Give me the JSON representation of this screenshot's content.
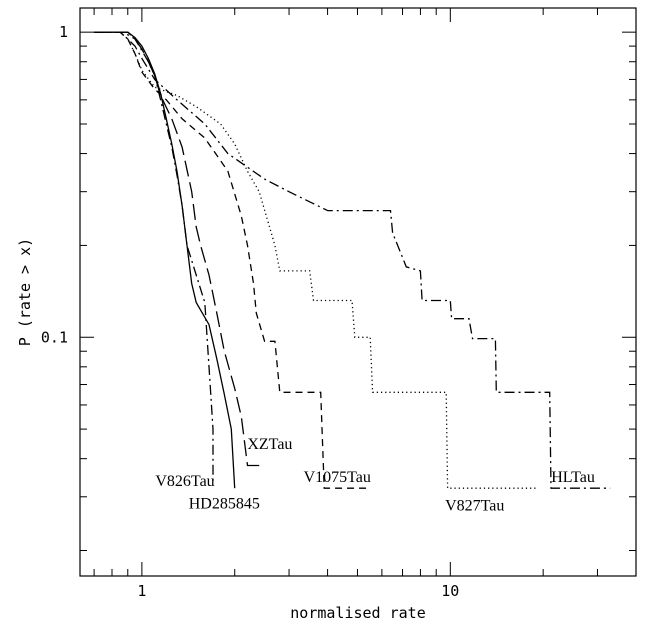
{
  "chart_data": {
    "type": "line",
    "title": "",
    "xlabel": "normalised rate",
    "ylabel": "P (rate > x)",
    "xscale": "log",
    "yscale": "log",
    "xlim": [
      0.63,
      40
    ],
    "ylim": [
      0.0165,
      1.2
    ],
    "xticks_labeled": [
      {
        "value": 1,
        "label": "1"
      },
      {
        "value": 10,
        "label": "10"
      }
    ],
    "yticks_labeled": [
      {
        "value": 1,
        "label": "1"
      },
      {
        "value": 0.1,
        "label": "0.1"
      }
    ],
    "grid": false,
    "legend": "none (series labelled directly on plot)",
    "series": [
      {
        "name": "V826Tau",
        "style": "dash-dot",
        "color": "#000000",
        "points": [
          [
            0.7,
            1.0
          ],
          [
            0.88,
            1.0
          ],
          [
            0.9,
            0.98
          ],
          [
            0.95,
            0.95
          ],
          [
            1.0,
            0.87
          ],
          [
            1.05,
            0.8
          ],
          [
            1.1,
            0.72
          ],
          [
            1.15,
            0.6
          ],
          [
            1.2,
            0.5
          ],
          [
            1.25,
            0.42
          ],
          [
            1.3,
            0.34
          ],
          [
            1.35,
            0.27
          ],
          [
            1.4,
            0.2
          ],
          [
            1.5,
            0.16
          ],
          [
            1.6,
            0.13
          ],
          [
            1.65,
            0.08
          ],
          [
            1.7,
            0.05
          ],
          [
            1.7,
            0.033
          ]
        ],
        "label_anchor": [
          1.38,
          0.0325
        ]
      },
      {
        "name": "HD285845",
        "style": "solid",
        "color": "#000000",
        "points": [
          [
            0.7,
            1.0
          ],
          [
            0.9,
            1.0
          ],
          [
            0.95,
            0.96
          ],
          [
            1.0,
            0.9
          ],
          [
            1.05,
            0.82
          ],
          [
            1.1,
            0.73
          ],
          [
            1.15,
            0.63
          ],
          [
            1.2,
            0.52
          ],
          [
            1.25,
            0.43
          ],
          [
            1.3,
            0.35
          ],
          [
            1.35,
            0.27
          ],
          [
            1.4,
            0.2
          ],
          [
            1.45,
            0.15
          ],
          [
            1.5,
            0.13
          ],
          [
            1.65,
            0.11
          ],
          [
            1.75,
            0.085
          ],
          [
            1.85,
            0.065
          ],
          [
            1.95,
            0.05
          ],
          [
            2.0,
            0.032
          ]
        ],
        "label_anchor": [
          1.85,
          0.0275
        ]
      },
      {
        "name": "XZTau",
        "style": "long-dash",
        "color": "#000000",
        "points": [
          [
            0.7,
            1.0
          ],
          [
            0.9,
            1.0
          ],
          [
            0.95,
            0.95
          ],
          [
            1.0,
            0.88
          ],
          [
            1.05,
            0.8
          ],
          [
            1.1,
            0.72
          ],
          [
            1.15,
            0.62
          ],
          [
            1.25,
            0.52
          ],
          [
            1.35,
            0.42
          ],
          [
            1.45,
            0.3
          ],
          [
            1.5,
            0.23
          ],
          [
            1.55,
            0.2
          ],
          [
            1.65,
            0.16
          ],
          [
            1.75,
            0.12
          ],
          [
            1.85,
            0.09
          ],
          [
            2.0,
            0.068
          ],
          [
            2.1,
            0.055
          ],
          [
            2.2,
            0.038
          ],
          [
            2.4,
            0.038
          ]
        ],
        "label_anchor": [
          2.6,
          0.043
        ]
      },
      {
        "name": "V1075Tau",
        "style": "dashed",
        "color": "#000000",
        "points": [
          [
            0.7,
            1.0
          ],
          [
            0.85,
            1.0
          ],
          [
            0.9,
            0.95
          ],
          [
            0.95,
            0.85
          ],
          [
            1.0,
            0.74
          ],
          [
            1.1,
            0.65
          ],
          [
            1.2,
            0.6
          ],
          [
            1.35,
            0.52
          ],
          [
            1.6,
            0.45
          ],
          [
            1.9,
            0.35
          ],
          [
            2.1,
            0.25
          ],
          [
            2.2,
            0.2
          ],
          [
            2.3,
            0.15
          ],
          [
            2.35,
            0.12
          ],
          [
            2.5,
            0.097
          ],
          [
            2.7,
            0.097
          ],
          [
            2.8,
            0.066
          ],
          [
            3.8,
            0.066
          ],
          [
            3.9,
            0.032
          ],
          [
            5.5,
            0.032
          ]
        ],
        "label_anchor": [
          4.3,
          0.0335
        ]
      },
      {
        "name": "V827Tau",
        "style": "dotted",
        "color": "#000000",
        "points": [
          [
            0.7,
            1.0
          ],
          [
            0.85,
            1.0
          ],
          [
            0.9,
            0.95
          ],
          [
            0.95,
            0.85
          ],
          [
            1.0,
            0.75
          ],
          [
            1.1,
            0.66
          ],
          [
            1.3,
            0.62
          ],
          [
            1.5,
            0.57
          ],
          [
            1.8,
            0.5
          ],
          [
            2.0,
            0.43
          ],
          [
            2.2,
            0.35
          ],
          [
            2.4,
            0.3
          ],
          [
            2.7,
            0.2
          ],
          [
            2.8,
            0.165
          ],
          [
            3.5,
            0.165
          ],
          [
            3.6,
            0.132
          ],
          [
            4.8,
            0.132
          ],
          [
            4.9,
            0.1
          ],
          [
            5.5,
            0.1
          ],
          [
            5.6,
            0.066
          ],
          [
            9.7,
            0.066
          ],
          [
            9.8,
            0.032
          ],
          [
            19,
            0.032
          ]
        ],
        "label_anchor": [
          12,
          0.027
        ]
      },
      {
        "name": "HLTau",
        "style": "dash-dot",
        "color": "#000000",
        "points": [
          [
            0.7,
            1.0
          ],
          [
            0.85,
            1.0
          ],
          [
            0.9,
            0.95
          ],
          [
            0.95,
            0.9
          ],
          [
            1.0,
            0.82
          ],
          [
            1.1,
            0.7
          ],
          [
            1.3,
            0.6
          ],
          [
            1.6,
            0.5
          ],
          [
            1.9,
            0.4
          ],
          [
            2.5,
            0.33
          ],
          [
            3.0,
            0.3
          ],
          [
            4.0,
            0.26
          ],
          [
            6.4,
            0.26
          ],
          [
            6.5,
            0.22
          ],
          [
            7.2,
            0.17
          ],
          [
            8.0,
            0.165
          ],
          [
            8.1,
            0.132
          ],
          [
            10.0,
            0.132
          ],
          [
            10.1,
            0.115
          ],
          [
            11.5,
            0.115
          ],
          [
            11.8,
            0.099
          ],
          [
            14.0,
            0.099
          ],
          [
            14.1,
            0.066
          ],
          [
            21.0,
            0.066
          ],
          [
            21.2,
            0.032
          ],
          [
            33,
            0.032
          ]
        ],
        "label_anchor": [
          25,
          0.0335
        ]
      }
    ]
  }
}
